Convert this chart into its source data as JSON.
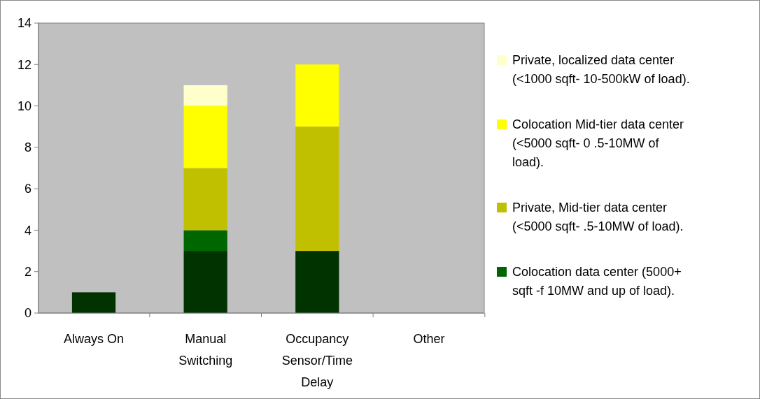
{
  "chart_data": {
    "type": "bar",
    "stacked": true,
    "categories": [
      "Always On",
      "Manual Switching",
      "Occupancy Sensor/Time Delay",
      "Other"
    ],
    "series": [
      {
        "color": "#003300",
        "values": [
          1,
          3,
          3,
          0
        ]
      },
      {
        "name": "Colocation data center (5000+ sqft -f 10MW and up of load).",
        "color": "#006600",
        "values": [
          0,
          1,
          0,
          0
        ]
      },
      {
        "name": "Private, Mid-tier data center (<5000 sqft-  .5-10MW of load).",
        "color": "#c0c000",
        "values": [
          0,
          3,
          6,
          0
        ]
      },
      {
        "name": "Colocation Mid-tier data center (<5000 sqft- 0 .5-10MW of load).",
        "color": "#ffff00",
        "values": [
          0,
          3,
          3,
          0
        ]
      },
      {
        "name": "Private, localized data center (<1000 sqft- 10-500kW of load).",
        "color": "#ffffcc",
        "values": [
          0,
          1,
          0,
          0
        ]
      }
    ],
    "ylim": [
      0,
      14
    ],
    "yticks": [
      0,
      2,
      4,
      6,
      8,
      10,
      12,
      14
    ],
    "grid": false,
    "legend": "right"
  }
}
